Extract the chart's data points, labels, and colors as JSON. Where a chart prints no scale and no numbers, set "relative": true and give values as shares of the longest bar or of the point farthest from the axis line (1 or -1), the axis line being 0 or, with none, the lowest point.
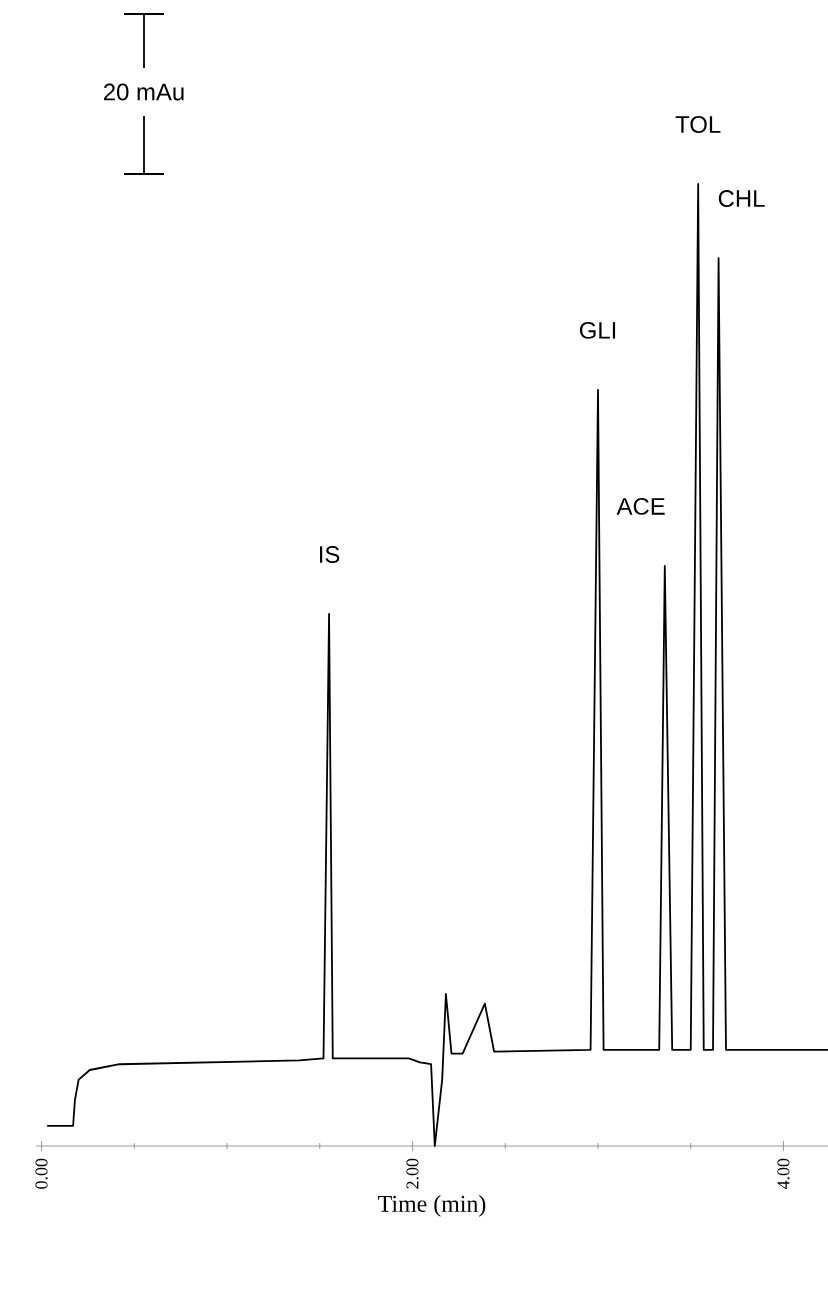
{
  "chart_data": {
    "type": "line",
    "relative": true,
    "color": "#000000",
    "xlabel": "Time (min)",
    "xlim": [
      -0.03,
      4.24
    ],
    "xticks": [
      {
        "value": 0,
        "label": "0.00"
      },
      {
        "value": 2,
        "label": "2.00"
      },
      {
        "value": 4,
        "label": "4.00"
      }
    ],
    "x": [
      0.03,
      0.17,
      0.18,
      0.2,
      0.26,
      0.42,
      1.39,
      1.52,
      1.55,
      1.57,
      1.98,
      2.04,
      2.1,
      2.12,
      2.16,
      2.18,
      2.21,
      2.27,
      2.39,
      2.44,
      2.96,
      3.0,
      3.03,
      3.33,
      3.36,
      3.4,
      3.5,
      3.54,
      3.57,
      3.62,
      3.65,
      3.69,
      4.24
    ],
    "values": [
      0.021,
      0.021,
      0.048,
      0.069,
      0.079,
      0.085,
      0.089,
      0.091,
      0.553,
      0.091,
      0.091,
      0.087,
      0.085,
      0,
      0.069,
      0.158,
      0.096,
      0.096,
      0.148,
      0.098,
      0.1,
      0.786,
      0.1,
      0.1,
      0.603,
      0.1,
      0.1,
      1,
      0.1,
      0.1,
      0.923,
      0.1,
      0.1
    ],
    "annotations": [
      {
        "text": "IS",
        "x": 1.55,
        "y": 0.553
      },
      {
        "text": "GLI",
        "x": 3.0,
        "y": 0.786
      },
      {
        "text": "ACE",
        "x": 3.36,
        "y": 0.603
      },
      {
        "text": "TOL",
        "x": 3.54,
        "y": 1
      },
      {
        "text": "CHL",
        "x": 3.65,
        "y": 0.923
      },
      "20 mAu"
    ]
  }
}
